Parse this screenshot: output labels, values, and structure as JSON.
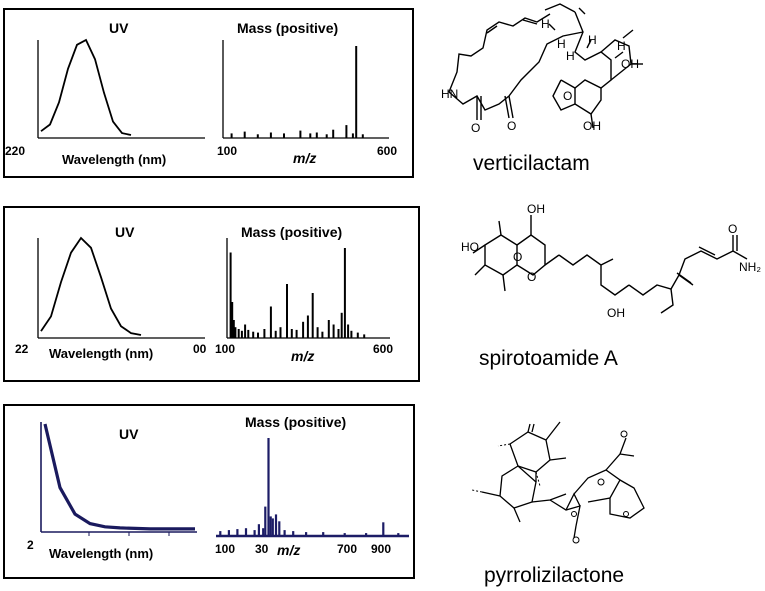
{
  "compounds": [
    {
      "name": "verticilactam",
      "uv_title": "UV",
      "mass_title": "Mass (positive)",
      "wl_min": "220",
      "wl_axis": "Wavelength (nm)",
      "mz_min": "100",
      "mz_axis": "m/z",
      "mz_max": "600",
      "atoms": {
        "oh1": "OH",
        "oh2": "OH",
        "hn": "HN",
        "o1": "O",
        "o2": "O",
        "o3": "O",
        "h1": "H",
        "h2": "H",
        "h3": "H",
        "h4": "H",
        "h5": "H"
      }
    },
    {
      "name": "spirotoamide A",
      "uv_title": "UV",
      "mass_title": "Mass (positive)",
      "wl_min": "22",
      "wl_axis": "Wavelength (nm)",
      "wl_max": "00",
      "mz_min": "100",
      "mz_axis": "m/z",
      "mz_max": "600",
      "atoms": {
        "ho": "HO",
        "oh1": "OH",
        "oh2": "OH",
        "o1": "O",
        "o2": "O",
        "o3": "O",
        "nh2": "NH₂"
      }
    },
    {
      "name": "pyrrolizilactone",
      "uv_title": "UV",
      "mass_title": "Mass (positive)",
      "wl_min": "2",
      "wl_axis": "Wavelength (nm)",
      "mz_ticks": [
        "100",
        "30",
        "700",
        "900"
      ],
      "mz_axis": "m/z"
    }
  ],
  "colors": {
    "ink": "#000000",
    "panel3_trace": "#1a1a5e",
    "panel3_bar": "#1c1c66"
  },
  "chart_data": [
    {
      "type": "line",
      "panel": "verticilactam UV",
      "x": [
        0,
        1,
        2,
        3,
        4,
        5,
        6,
        7,
        8,
        9,
        10
      ],
      "y": [
        5,
        12,
        35,
        70,
        95,
        100,
        80,
        45,
        15,
        3,
        1
      ]
    },
    {
      "type": "bar",
      "panel": "verticilactam mass",
      "xlim": [
        100,
        600
      ],
      "peaks": [
        [
          120,
          5
        ],
        [
          160,
          7
        ],
        [
          200,
          4
        ],
        [
          240,
          6
        ],
        [
          280,
          5
        ],
        [
          330,
          8
        ],
        [
          360,
          5
        ],
        [
          380,
          6
        ],
        [
          410,
          4
        ],
        [
          430,
          9
        ],
        [
          470,
          14
        ],
        [
          490,
          5
        ],
        [
          500,
          100
        ],
        [
          520,
          4
        ]
      ]
    },
    {
      "type": "line",
      "panel": "spirotoamide A UV",
      "x": [
        0,
        1,
        2,
        3,
        4,
        5,
        6,
        7,
        8,
        9,
        10
      ],
      "y": [
        5,
        20,
        55,
        85,
        100,
        90,
        60,
        28,
        10,
        3,
        1
      ]
    },
    {
      "type": "bar",
      "panel": "spirotoamide A mass",
      "xlim": [
        100,
        600
      ],
      "peaks": [
        [
          105,
          95
        ],
        [
          110,
          40
        ],
        [
          115,
          20
        ],
        [
          120,
          12
        ],
        [
          130,
          10
        ],
        [
          140,
          8
        ],
        [
          150,
          15
        ],
        [
          160,
          9
        ],
        [
          175,
          7
        ],
        [
          190,
          6
        ],
        [
          210,
          10
        ],
        [
          230,
          35
        ],
        [
          245,
          8
        ],
        [
          260,
          12
        ],
        [
          280,
          60
        ],
        [
          295,
          10
        ],
        [
          310,
          9
        ],
        [
          330,
          18
        ],
        [
          345,
          25
        ],
        [
          360,
          50
        ],
        [
          375,
          12
        ],
        [
          390,
          7
        ],
        [
          410,
          20
        ],
        [
          425,
          15
        ],
        [
          440,
          10
        ],
        [
          450,
          28
        ],
        [
          460,
          100
        ],
        [
          470,
          15
        ],
        [
          480,
          8
        ],
        [
          500,
          6
        ],
        [
          520,
          4
        ]
      ]
    },
    {
      "type": "line",
      "panel": "pyrrolizilactone UV",
      "x": [
        0,
        1,
        2,
        3,
        4,
        5,
        6,
        7,
        8,
        9,
        10
      ],
      "y": [
        100,
        40,
        15,
        6,
        3,
        2,
        1.5,
        1,
        1,
        1,
        1
      ]
    },
    {
      "type": "bar",
      "panel": "pyrrolizilactone mass",
      "xlim": [
        100,
        1000
      ],
      "peaks": [
        [
          120,
          5
        ],
        [
          160,
          6
        ],
        [
          200,
          7
        ],
        [
          240,
          8
        ],
        [
          280,
          6
        ],
        [
          300,
          12
        ],
        [
          320,
          8
        ],
        [
          330,
          30
        ],
        [
          345,
          100
        ],
        [
          355,
          20
        ],
        [
          365,
          18
        ],
        [
          380,
          22
        ],
        [
          395,
          15
        ],
        [
          420,
          6
        ],
        [
          460,
          5
        ],
        [
          520,
          4
        ],
        [
          600,
          4
        ],
        [
          700,
          3
        ],
        [
          800,
          3
        ],
        [
          880,
          14
        ],
        [
          950,
          3
        ]
      ]
    }
  ]
}
